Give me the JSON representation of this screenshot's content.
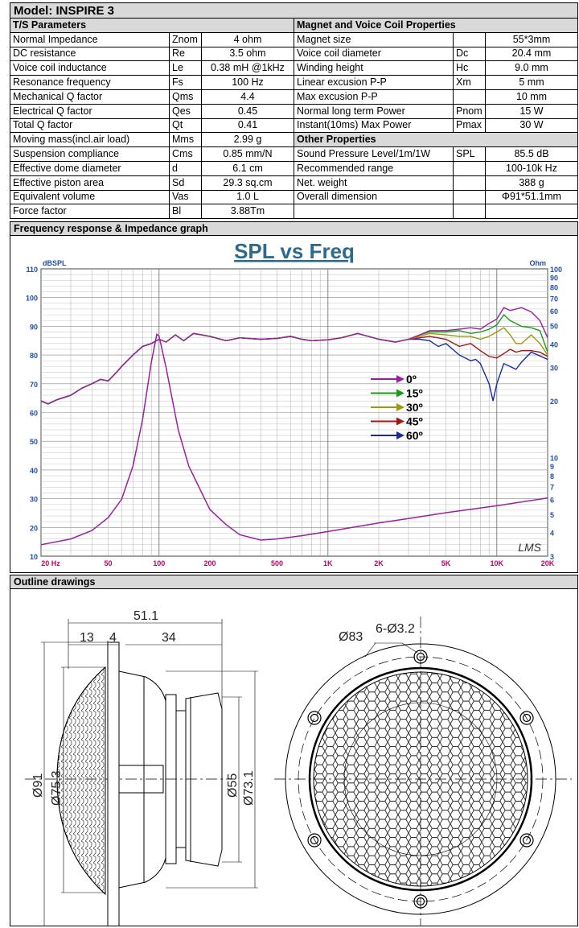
{
  "model_title": "Model: INSPIRE 3",
  "ts_parameters": {
    "header": "T/S Parameters",
    "rows": [
      {
        "name": "Normal Impedance",
        "symbol": "Znom",
        "value": "4 ohm"
      },
      {
        "name": "DC resistance",
        "symbol": "Re",
        "value": "3.5 ohm"
      },
      {
        "name": "Voice coil inductance",
        "symbol": "Le",
        "value": "0.38 mH @1kHz"
      },
      {
        "name": "Resonance frequency",
        "symbol": "Fs",
        "value": "100 Hz"
      },
      {
        "name": "Mechanical Q factor",
        "symbol": "Qms",
        "value": "4.4"
      },
      {
        "name": "Electrical Q factor",
        "symbol": "Qes",
        "value": "0.45"
      },
      {
        "name": "Total Q factor",
        "symbol": "Qt",
        "value": "0.41"
      },
      {
        "name": "Moving mass(incl.air load)",
        "symbol": "Mms",
        "value": "2.99 g"
      },
      {
        "name": "Suspension compliance",
        "symbol": "Cms",
        "value": "0.85 mm/N"
      },
      {
        "name": "Effective dome diameter",
        "symbol": "d",
        "value": "6.1 cm"
      },
      {
        "name": "Effective piston area",
        "symbol": "Sd",
        "value": "29.3 sq.cm"
      },
      {
        "name": "Equivalent volume",
        "symbol": "Vas",
        "value": "1.0 L"
      },
      {
        "name": "Force factor",
        "symbol": "Bl",
        "value": "3.88Tm"
      }
    ]
  },
  "magnet_properties": {
    "header": "Magnet and Voice Coil Properties",
    "rows": [
      {
        "name": "Magnet size",
        "symbol": "",
        "value": "55*3mm"
      },
      {
        "name": "Voice coil diameter",
        "symbol": "Dc",
        "value": "20.4 mm"
      },
      {
        "name": "Winding height",
        "symbol": "Hc",
        "value": "9.0 mm"
      },
      {
        "name": "Linear excusion P-P",
        "symbol": "Xm",
        "value": "5 mm"
      },
      {
        "name": "Max excusion P-P",
        "symbol": "",
        "value": "10 mm"
      },
      {
        "name": "Normal long term Power",
        "symbol": "Pnom",
        "value": "15 W"
      },
      {
        "name": "Instant(10ms) Max Power",
        "symbol": "Pmax",
        "value": "30 W"
      }
    ]
  },
  "other_properties": {
    "header": "Other Properties",
    "rows": [
      {
        "name": "Sound Pressure Level/1m/1W",
        "symbol": "SPL",
        "value": "85.5 dB"
      },
      {
        "name": "Recommended range",
        "symbol": "",
        "value": "100-10k Hz"
      },
      {
        "name": "Net. weight",
        "symbol": "",
        "value": "388 g"
      },
      {
        "name": "Overall dimension",
        "symbol": "",
        "value": "Φ91*51.1mm"
      },
      {
        "name": "",
        "symbol": "",
        "value": ""
      }
    ]
  },
  "graph_section": {
    "header": "Frequency response & Impedance graph"
  },
  "chart_data": {
    "type": "line",
    "title": "SPL vs Freq",
    "ylabel": "dBSPL",
    "y2label": "Ohm",
    "logo": "LMS",
    "x_scale": "log",
    "xlim": [
      20,
      20000
    ],
    "ylim": [
      10,
      110
    ],
    "y2lim": [
      3,
      100
    ],
    "y2_scale": "log",
    "grid": true,
    "legend_placement": "center-right",
    "x_ticks": [
      {
        "v": 20,
        "label": "20 Hz"
      },
      {
        "v": 50,
        "label": "50"
      },
      {
        "v": 100,
        "label": "100"
      },
      {
        "v": 200,
        "label": "200"
      },
      {
        "v": 500,
        "label": "500"
      },
      {
        "v": 1000,
        "label": "1K"
      },
      {
        "v": 2000,
        "label": "2K"
      },
      {
        "v": 5000,
        "label": "5K"
      },
      {
        "v": 10000,
        "label": "10K"
      },
      {
        "v": 20000,
        "label": "20K"
      }
    ],
    "y_ticks": [
      10,
      20,
      30,
      40,
      50,
      60,
      70,
      80,
      90,
      100,
      110
    ],
    "y2_ticks": [
      3,
      4,
      5,
      6,
      7,
      8,
      9,
      10,
      20,
      30,
      40,
      50,
      60,
      70,
      80,
      90,
      100
    ],
    "colors": {
      "axis_label": "#1f4fa0",
      "x_tick_label": "#c0006a",
      "title": "#2e6b8a"
    },
    "common_low": [
      [
        20,
        64
      ],
      [
        22,
        63
      ],
      [
        25,
        64.5
      ],
      [
        30,
        66
      ],
      [
        35,
        68.5
      ],
      [
        40,
        70
      ],
      [
        45,
        71.5
      ],
      [
        50,
        71
      ],
      [
        55,
        73.5
      ],
      [
        60,
        76
      ],
      [
        70,
        80
      ],
      [
        80,
        83
      ],
      [
        90,
        84
      ],
      [
        100,
        85.5
      ],
      [
        110,
        84.5
      ],
      [
        125,
        87
      ],
      [
        140,
        85
      ],
      [
        160,
        87.5
      ],
      [
        200,
        86.5
      ],
      [
        250,
        85
      ],
      [
        300,
        86
      ],
      [
        400,
        85.5
      ],
      [
        500,
        85.8
      ],
      [
        600,
        86.5
      ],
      [
        700,
        85.5
      ],
      [
        800,
        85
      ],
      [
        1000,
        85.3
      ],
      [
        1200,
        86
      ],
      [
        1500,
        87.5
      ],
      [
        2000,
        85.5
      ],
      [
        2500,
        84.5
      ],
      [
        3000,
        85.5
      ]
    ],
    "series": [
      {
        "name": "0º",
        "color": "#9b1fa0",
        "high": [
          [
            3500,
            87
          ],
          [
            4000,
            88.5
          ],
          [
            5000,
            88.5
          ],
          [
            6000,
            89
          ],
          [
            7000,
            89.5
          ],
          [
            8000,
            89
          ],
          [
            9000,
            91
          ],
          [
            10000,
            92.5
          ],
          [
            11000,
            96.5
          ],
          [
            12000,
            95.5
          ],
          [
            14000,
            96.5
          ],
          [
            16000,
            95
          ],
          [
            18000,
            92
          ],
          [
            20000,
            86
          ]
        ]
      },
      {
        "name": "15º",
        "color": "#1a9a1a",
        "high": [
          [
            3500,
            87
          ],
          [
            4000,
            88
          ],
          [
            5000,
            88
          ],
          [
            6000,
            88.5
          ],
          [
            7000,
            87.5
          ],
          [
            8000,
            88
          ],
          [
            9000,
            89
          ],
          [
            10000,
            90.5
          ],
          [
            11000,
            94
          ],
          [
            12000,
            92
          ],
          [
            14000,
            90
          ],
          [
            16000,
            89.5
          ],
          [
            18000,
            88.5
          ],
          [
            20000,
            81
          ]
        ]
      },
      {
        "name": "30º",
        "color": "#9a9a10",
        "high": [
          [
            3500,
            86.5
          ],
          [
            4000,
            87.5
          ],
          [
            5000,
            87
          ],
          [
            6000,
            86.5
          ],
          [
            7000,
            86.5
          ],
          [
            8000,
            85.5
          ],
          [
            9000,
            86.5
          ],
          [
            10000,
            88
          ],
          [
            11000,
            89.5
          ],
          [
            12000,
            87
          ],
          [
            13000,
            84
          ],
          [
            14000,
            84
          ],
          [
            16000,
            87
          ],
          [
            18000,
            84
          ],
          [
            20000,
            80
          ]
        ]
      },
      {
        "name": "45º",
        "color": "#a01818",
        "high": [
          [
            3500,
            86
          ],
          [
            4000,
            86.5
          ],
          [
            5000,
            85.5
          ],
          [
            6000,
            83
          ],
          [
            7000,
            84
          ],
          [
            8000,
            81.5
          ],
          [
            9000,
            79.5
          ],
          [
            10000,
            79
          ],
          [
            11000,
            80.5
          ],
          [
            12000,
            82
          ],
          [
            13000,
            81
          ],
          [
            14000,
            81.5
          ],
          [
            16000,
            81.5
          ],
          [
            18000,
            81
          ],
          [
            20000,
            79.5
          ]
        ]
      },
      {
        "name": "60º",
        "color": "#1a2aa0",
        "high": [
          [
            3500,
            85.5
          ],
          [
            4000,
            85
          ],
          [
            4500,
            83
          ],
          [
            5000,
            84
          ],
          [
            6000,
            80
          ],
          [
            7000,
            78
          ],
          [
            7500,
            78.5
          ],
          [
            8000,
            77
          ],
          [
            9000,
            70
          ],
          [
            9500,
            64
          ],
          [
            10000,
            70
          ],
          [
            11000,
            77
          ],
          [
            12000,
            76
          ],
          [
            13000,
            75
          ],
          [
            14000,
            77.5
          ],
          [
            16000,
            81
          ],
          [
            20000,
            78.5
          ]
        ]
      }
    ],
    "impedance": {
      "color": "#9b1fa0",
      "unit": "Ohm",
      "points": [
        [
          20,
          3.45
        ],
        [
          30,
          3.7
        ],
        [
          40,
          4.1
        ],
        [
          50,
          4.8
        ],
        [
          60,
          6
        ],
        [
          70,
          9
        ],
        [
          80,
          16
        ],
        [
          90,
          32
        ],
        [
          97,
          45
        ],
        [
          100,
          44
        ],
        [
          110,
          30
        ],
        [
          130,
          14
        ],
        [
          150,
          9
        ],
        [
          200,
          5.3
        ],
        [
          250,
          4.4
        ],
        [
          300,
          3.9
        ],
        [
          400,
          3.65
        ],
        [
          500,
          3.7
        ],
        [
          700,
          3.85
        ],
        [
          1000,
          4.05
        ],
        [
          2000,
          4.5
        ],
        [
          3000,
          4.75
        ],
        [
          5000,
          5.1
        ],
        [
          10000,
          5.55
        ],
        [
          20000,
          6.1
        ]
      ]
    }
  },
  "outline_section": {
    "header": "Outline drawings",
    "dimensions": {
      "overall_depth": "51.1",
      "grille_depth": "13",
      "flange_thickness": "4",
      "rear_depth": "34",
      "outer_diameter": "Ø91",
      "grille_diameter": "Ø75.3",
      "magnet_diameter": "Ø55",
      "basket_diameter": "Ø73.1",
      "mount_circle": "Ø83",
      "holes": "6-Ø3.2"
    }
  }
}
